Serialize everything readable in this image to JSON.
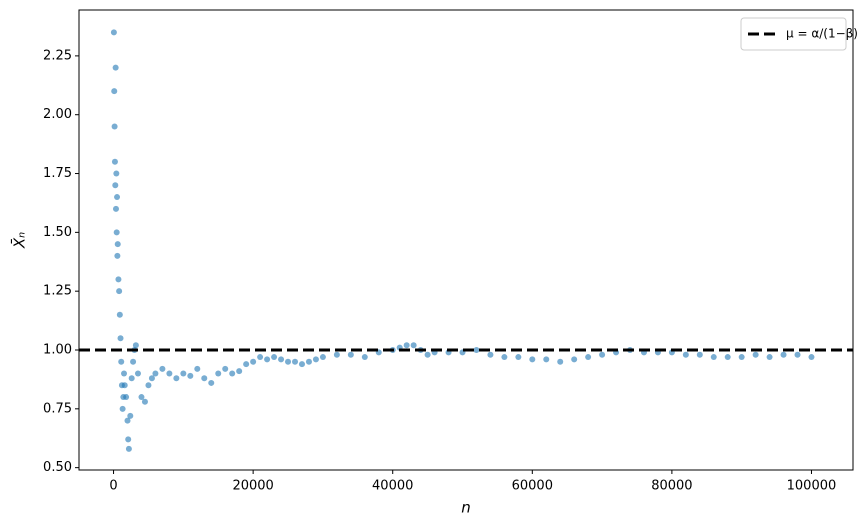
{
  "chart_data": {
    "type": "scatter",
    "xlabel": "n",
    "ylabel": "X̄ₙ",
    "xlim": [
      -4950,
      105950
    ],
    "ylim": [
      0.49,
      2.445
    ],
    "xticks": [
      0,
      20000,
      40000,
      60000,
      80000,
      100000
    ],
    "yticks": [
      {
        "value": 0.5,
        "label": "0.50"
      },
      0.75,
      {
        "value": 1.0,
        "label": "1.00"
      },
      1.25,
      {
        "value": 1.5,
        "label": "1.50"
      },
      1.75,
      {
        "value": 2.0,
        "label": "2.00"
      },
      2.25
    ],
    "legend": "upper right",
    "reference_line": {
      "y": 1,
      "label": "μ = α/(1−β)",
      "color": "#000000"
    },
    "series": [
      {
        "color": "#1f77b4",
        "x": [
          50,
          100,
          150,
          200,
          250,
          300,
          350,
          400,
          450,
          500,
          550,
          600,
          700,
          800,
          900,
          1000,
          1100,
          1200,
          1300,
          1400,
          1500,
          1600,
          1800,
          2000,
          2100,
          2200,
          2400,
          2600,
          2800,
          3000,
          3200,
          3500,
          4000,
          4500,
          5000,
          5500,
          6000,
          7000,
          8000,
          9000,
          10000,
          11000,
          12000,
          13000,
          14000,
          15000,
          16000,
          17000,
          18000,
          19000,
          20000,
          21000,
          22000,
          23000,
          24000,
          25000,
          26000,
          27000,
          28000,
          29000,
          30000,
          32000,
          34000,
          36000,
          38000,
          40000,
          41000,
          42000,
          43000,
          44000,
          45000,
          46000,
          48000,
          50000,
          52000,
          54000,
          56000,
          58000,
          60000,
          62000,
          64000,
          66000,
          68000,
          70000,
          72000,
          74000,
          76000,
          78000,
          80000,
          82000,
          84000,
          86000,
          88000,
          90000,
          92000,
          94000,
          96000,
          98000,
          100000
        ],
        "values": [
          2.35,
          2.1,
          1.95,
          1.8,
          1.7,
          2.2,
          1.6,
          1.75,
          1.5,
          1.65,
          1.4,
          1.45,
          1.3,
          1.25,
          1.15,
          1.05,
          0.95,
          0.85,
          0.75,
          0.8,
          0.9,
          0.85,
          0.8,
          0.7,
          0.62,
          0.58,
          0.72,
          0.88,
          0.95,
          1.0,
          1.02,
          0.9,
          0.8,
          0.78,
          0.85,
          0.88,
          0.9,
          0.92,
          0.9,
          0.88,
          0.9,
          0.89,
          0.92,
          0.88,
          0.86,
          0.9,
          0.92,
          0.9,
          0.91,
          0.94,
          0.95,
          0.97,
          0.96,
          0.97,
          0.96,
          0.95,
          0.95,
          0.94,
          0.95,
          0.96,
          0.97,
          0.98,
          0.98,
          0.97,
          0.99,
          1.0,
          1.01,
          1.02,
          1.02,
          1.0,
          0.98,
          0.99,
          0.99,
          0.99,
          1.0,
          0.98,
          0.97,
          0.97,
          0.96,
          0.96,
          0.95,
          0.96,
          0.97,
          0.98,
          0.99,
          1.0,
          0.99,
          0.99,
          0.99,
          0.98,
          0.98,
          0.97,
          0.97,
          0.97,
          0.98,
          0.97,
          0.98,
          0.98,
          0.97
        ]
      }
    ]
  }
}
